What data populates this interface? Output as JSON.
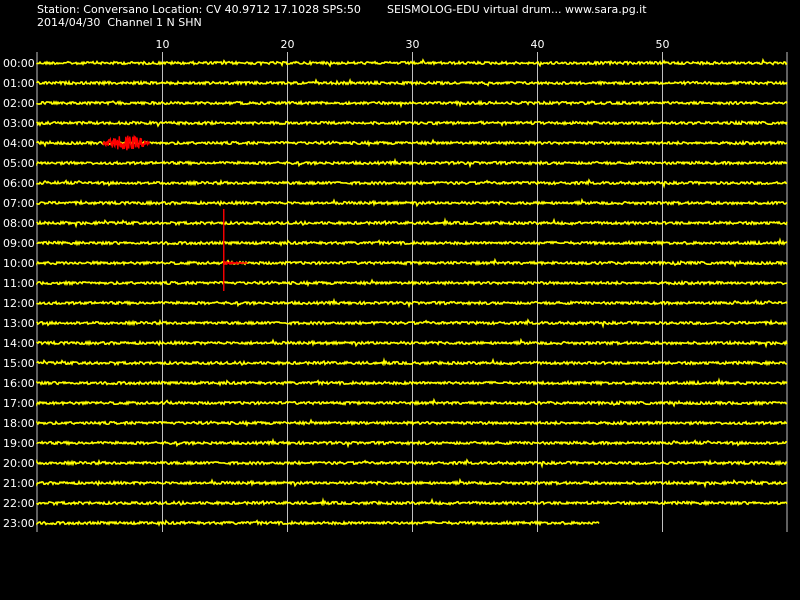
{
  "header": {
    "station_line": "Station: Conversano Location: CV 40.9712 17.1028 SPS:50",
    "site_line": "SEISMOLOG-EDU virtual drum... www.sara.pg.it",
    "date_channel_line": "2014/04/30  Channel 1 N SHN"
  },
  "chart_data": {
    "type": "line",
    "title": "",
    "xlabel": "",
    "ylabel": "",
    "x_ticks": [
      10,
      20,
      30,
      40,
      50
    ],
    "x_tick_labels": [
      "10",
      "20",
      "30",
      "40",
      "50"
    ],
    "xlim": [
      0,
      60
    ],
    "grid": true,
    "rows": [
      "00:00",
      "01:00",
      "02:00",
      "03:00",
      "04:00",
      "05:00",
      "06:00",
      "07:00",
      "08:00",
      "09:00",
      "10:00",
      "11:00",
      "12:00",
      "13:00",
      "14:00",
      "15:00",
      "16:00",
      "17:00",
      "18:00",
      "19:00",
      "20:00",
      "21:00",
      "22:00",
      "23:00"
    ],
    "last_row_end_minute": 45,
    "events": [
      {
        "row": "04:00",
        "start_minute": 5.3,
        "end_minute": 9.0,
        "amplitude": "medium",
        "color": "#ff0000"
      },
      {
        "row": "10:00",
        "start_minute": 14.9,
        "end_minute": 16.8,
        "amplitude": "large",
        "color": "#ff0000"
      }
    ],
    "colors": {
      "trace": "#ffff00",
      "event": "#ff0000",
      "grid": "#c0c0c0",
      "background": "#000000",
      "text": "#ffffff"
    }
  }
}
